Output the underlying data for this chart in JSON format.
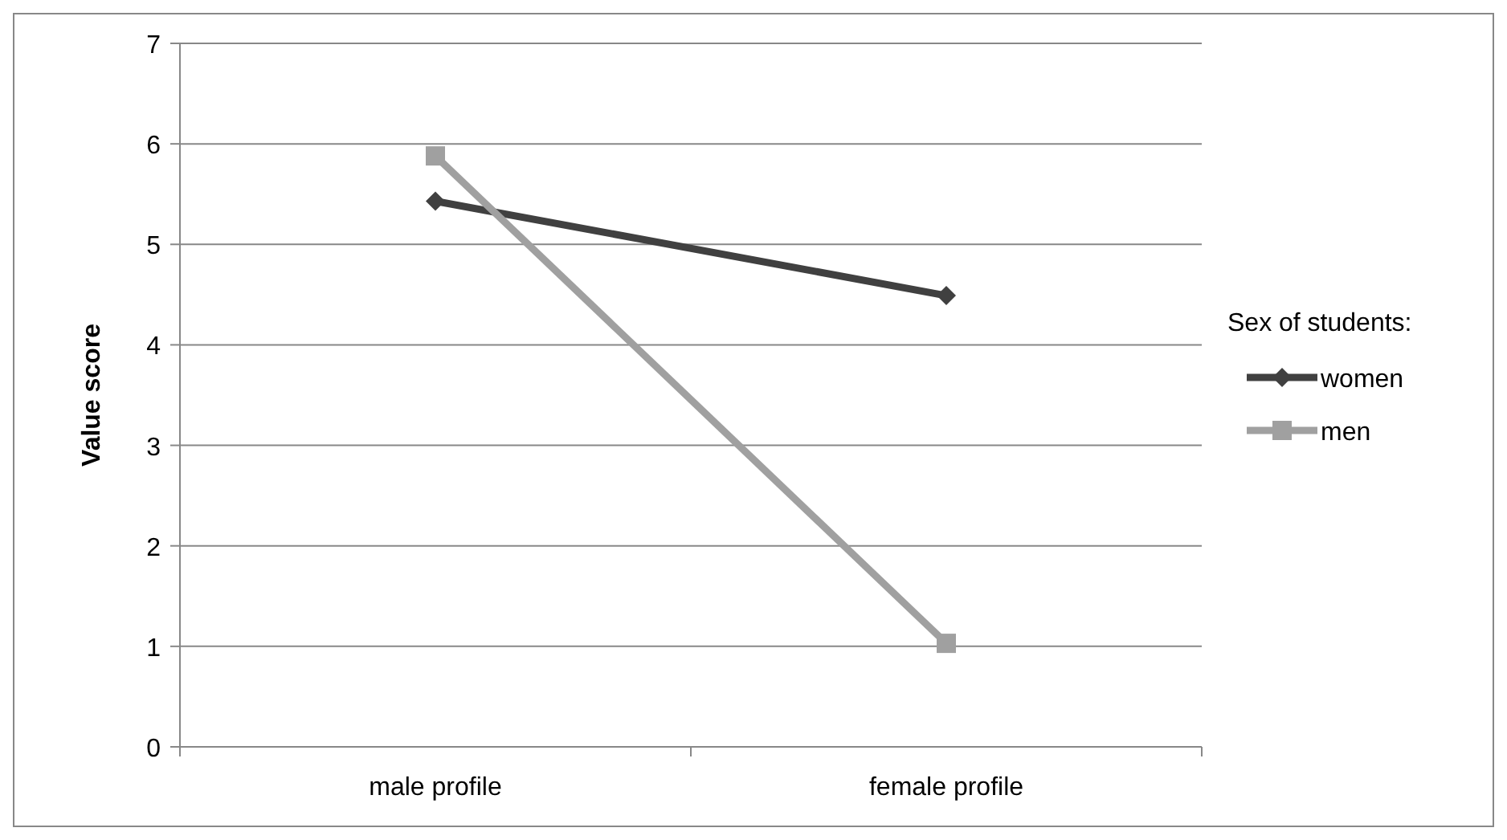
{
  "chart_data": {
    "type": "line",
    "ylabel": "Value score",
    "legend_title": "Sex of students:",
    "categories": [
      "male profile",
      "female profile"
    ],
    "series": [
      {
        "name": "women",
        "color": "#404040",
        "marker": "diamond",
        "values": [
          5.43,
          4.49
        ]
      },
      {
        "name": "men",
        "color": "#a0a0a0",
        "marker": "square",
        "values": [
          5.88,
          1.03
        ]
      }
    ],
    "ylim": [
      0,
      7
    ],
    "yticks": [
      0,
      1,
      2,
      3,
      4,
      5,
      6,
      7
    ],
    "grid": "y",
    "legend": "right"
  }
}
